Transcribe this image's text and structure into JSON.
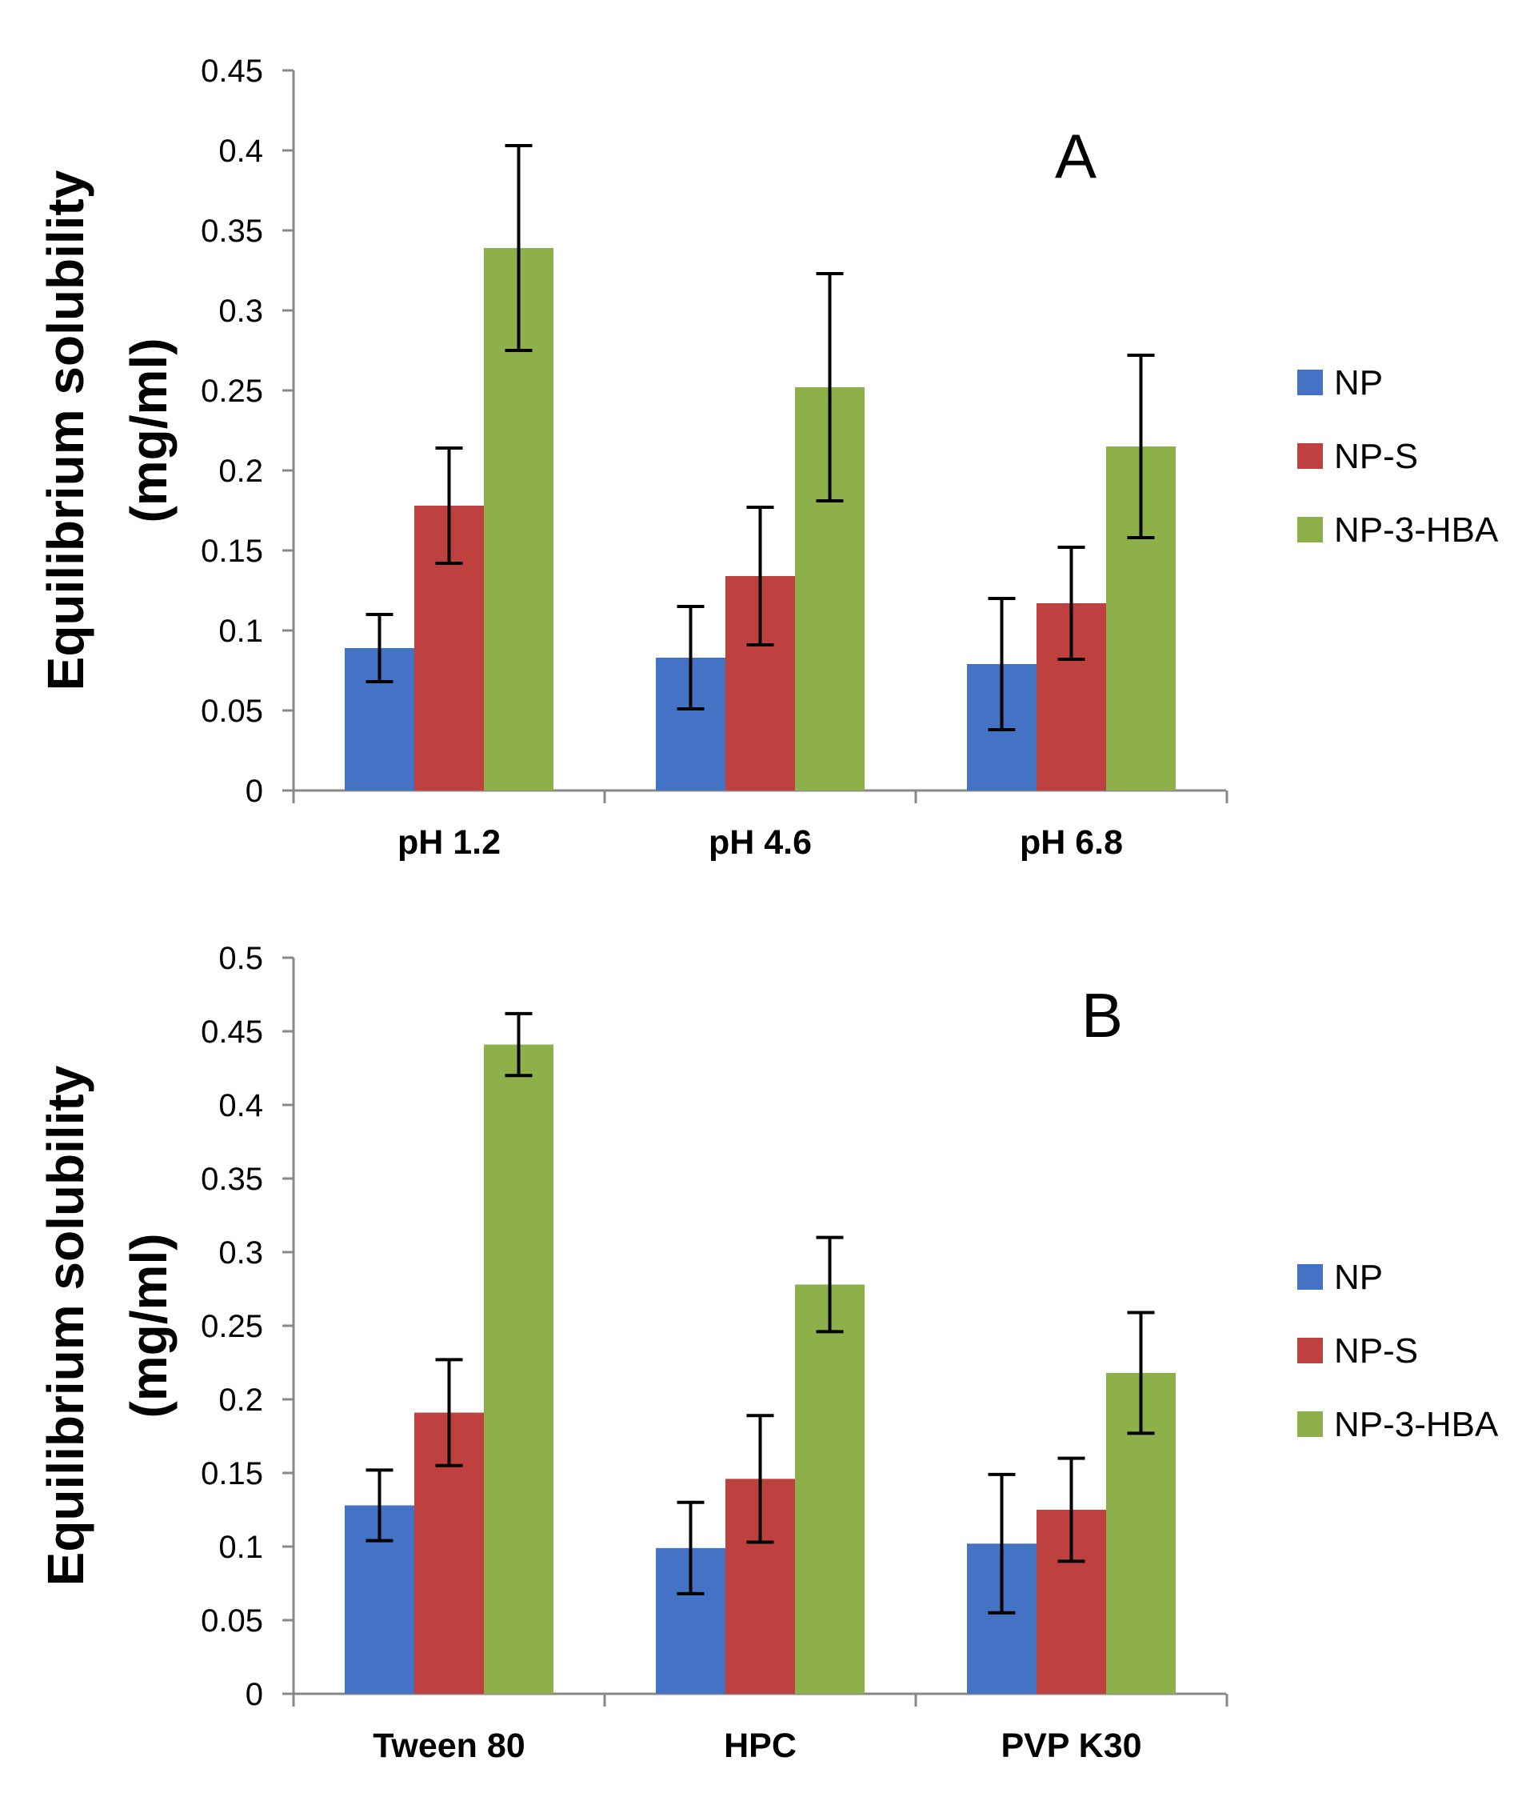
{
  "colors": {
    "NP": "#4472c4",
    "NP-S": "#be4140",
    "NP-3-HBA": "#8db04b",
    "axis": "#888888",
    "error_bar": "#000000"
  },
  "chart_data": [
    {
      "type": "bar",
      "panel_label": "A",
      "ylabel_line1": "Equilibrium solubility",
      "ylabel_line2": "(mg/ml)",
      "xlabel": "",
      "ylim": [
        0,
        0.45
      ],
      "yticks": [
        "0",
        "0.05",
        "0.1",
        "0.15",
        "0.2",
        "0.25",
        "0.3",
        "0.35",
        "0.4",
        "0.45"
      ],
      "categories": [
        "pH 1.2",
        "pH 4.6",
        "pH 6.8"
      ],
      "legend": [
        "NP",
        "NP-S",
        "NP-3-HBA"
      ],
      "legend_position": "right",
      "series": [
        {
          "name": "NP",
          "values": [
            0.089,
            0.083,
            0.079
          ],
          "errors": [
            0.021,
            0.032,
            0.041
          ]
        },
        {
          "name": "NP-S",
          "values": [
            0.178,
            0.134,
            0.117
          ],
          "errors": [
            0.036,
            0.043,
            0.035
          ]
        },
        {
          "name": "NP-3-HBA",
          "values": [
            0.339,
            0.252,
            0.215
          ],
          "errors": [
            0.064,
            0.071,
            0.057
          ]
        }
      ]
    },
    {
      "type": "bar",
      "panel_label": "B",
      "ylabel_line1": "Equilibrium solubility",
      "ylabel_line2": "(mg/ml)",
      "xlabel": "",
      "ylim": [
        0,
        0.5
      ],
      "yticks": [
        "0",
        "0.05",
        "0.1",
        "0.15",
        "0.2",
        "0.25",
        "0.3",
        "0.35",
        "0.4",
        "0.45",
        "0.5"
      ],
      "categories": [
        "Tween 80",
        "HPC",
        "PVP K30"
      ],
      "legend": [
        "NP",
        "NP-S",
        "NP-3-HBA"
      ],
      "legend_position": "right",
      "series": [
        {
          "name": "NP",
          "values": [
            0.128,
            0.099,
            0.102
          ],
          "errors": [
            0.024,
            0.031,
            0.047
          ]
        },
        {
          "name": "NP-S",
          "values": [
            0.191,
            0.146,
            0.125
          ],
          "errors": [
            0.036,
            0.043,
            0.035
          ]
        },
        {
          "name": "NP-3-HBA",
          "values": [
            0.441,
            0.278,
            0.218
          ],
          "errors": [
            0.021,
            0.032,
            0.041
          ]
        }
      ]
    }
  ]
}
